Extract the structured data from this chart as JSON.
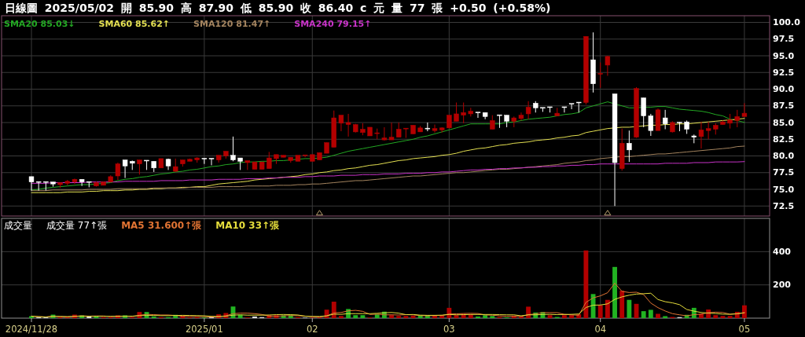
{
  "chart_data": [
    {
      "type": "candlestick",
      "title": "日線圖 2025/05/02 開 85.90 高 87.90 低 85.90 收 86.40 c 元 量 77 張 +0.50 (+0.58%)",
      "categories": [
        "2024/11/28",
        null,
        null,
        null,
        null,
        null,
        null,
        null,
        null,
        null,
        null,
        null,
        null,
        null,
        null,
        null,
        null,
        null,
        null,
        null,
        null,
        null,
        null,
        null,
        "2025/01",
        null,
        null,
        null,
        null,
        null,
        null,
        null,
        null,
        null,
        null,
        null,
        null,
        null,
        null,
        "02",
        null,
        null,
        null,
        null,
        null,
        null,
        null,
        null,
        null,
        null,
        null,
        null,
        null,
        null,
        null,
        null,
        null,
        null,
        "03",
        null,
        null,
        null,
        null,
        null,
        null,
        null,
        null,
        null,
        null,
        null,
        null,
        null,
        null,
        null,
        null,
        null,
        null,
        null,
        null,
        "04",
        null,
        null,
        null,
        null,
        null,
        null,
        null,
        null,
        null,
        null,
        null,
        null,
        null,
        null,
        null,
        null,
        null,
        null,
        null,
        "05"
      ],
      "ohlc": [
        [
          76.9,
          76.9,
          74.8,
          76.1
        ],
        [
          76.1,
          76.1,
          74.8,
          76.1
        ],
        [
          76.1,
          76.1,
          74.8,
          76.1
        ],
        [
          76.1,
          76.1,
          75.4,
          75.8
        ],
        [
          75.7,
          76.0,
          75.2,
          76.0
        ],
        [
          75.9,
          76.4,
          75.6,
          76.2
        ],
        [
          76.1,
          76.6,
          75.8,
          76.5
        ],
        [
          76.5,
          76.5,
          75.5,
          76.1
        ],
        [
          76.1,
          76.1,
          75.3,
          76.1
        ],
        [
          75.5,
          76.2,
          75.4,
          76.0
        ],
        [
          75.6,
          76.1,
          75.6,
          76.1
        ],
        [
          76.1,
          77.1,
          76.0,
          76.9
        ],
        [
          77.0,
          79.0,
          76.4,
          78.8
        ],
        [
          79.4,
          79.4,
          76.7,
          78.5
        ],
        [
          79.2,
          79.3,
          77.9,
          78.9
        ],
        [
          78.8,
          79.4,
          77.2,
          79.4
        ],
        [
          79.3,
          79.3,
          77.9,
          79.3
        ],
        [
          79.2,
          79.2,
          77.6,
          78.2
        ],
        [
          78.2,
          79.6,
          78.2,
          79.6
        ],
        [
          79.5,
          79.6,
          77.9,
          78.5
        ],
        [
          77.7,
          79.6,
          77.6,
          78.4
        ],
        [
          78.8,
          79.4,
          78.4,
          79.4
        ],
        [
          79.2,
          79.6,
          79.2,
          79.5
        ],
        [
          79.4,
          79.8,
          79.0,
          79.7
        ],
        [
          79.6,
          79.6,
          78.8,
          79.6
        ],
        [
          79.6,
          79.6,
          78.6,
          79.6
        ],
        [
          79.4,
          80.1,
          79.0,
          80.1
        ],
        [
          80.0,
          80.7,
          79.6,
          80.7
        ],
        [
          80.1,
          82.9,
          79.2,
          79.4
        ],
        [
          79.7,
          79.7,
          77.9,
          79.2
        ],
        [
          79.0,
          79.3,
          77.9,
          79.3
        ],
        [
          78.0,
          79.1,
          78.0,
          79.1
        ],
        [
          78.0,
          79.1,
          78.0,
          79.1
        ],
        [
          78.1,
          80.6,
          78.1,
          79.7
        ],
        [
          79.6,
          80.2,
          78.8,
          80.2
        ],
        [
          79.8,
          80.1,
          79.8,
          80.1
        ],
        [
          79.3,
          79.8,
          79.0,
          79.8
        ],
        [
          79.2,
          80.1,
          79.2,
          80.1
        ],
        [
          80.0,
          80.1,
          79.8,
          80.1
        ],
        [
          79.2,
          80.2,
          79.2,
          80.2
        ],
        [
          79.4,
          80.5,
          79.4,
          80.5
        ],
        [
          80.4,
          82.0,
          80.4,
          82.0
        ],
        [
          81.3,
          86.8,
          81.3,
          85.7
        ],
        [
          84.9,
          86.1,
          83.7,
          86.1
        ],
        [
          84.7,
          86.3,
          82.9,
          85.0
        ],
        [
          83.6,
          84.8,
          83.5,
          84.7
        ],
        [
          83.5,
          84.9,
          83.1,
          84.0
        ],
        [
          83.0,
          84.3,
          83.0,
          84.3
        ],
        [
          83.3,
          84.1,
          82.5,
          83.4
        ],
        [
          82.4,
          84.3,
          82.3,
          82.7
        ],
        [
          82.4,
          85.0,
          82.4,
          82.8
        ],
        [
          82.8,
          85.0,
          82.8,
          84.0
        ],
        [
          84.0,
          84.1,
          82.7,
          84.1
        ],
        [
          83.3,
          84.6,
          83.3,
          84.6
        ],
        [
          83.6,
          84.5,
          83.6,
          84.2
        ],
        [
          84.1,
          85.0,
          83.7,
          84.0
        ],
        [
          83.8,
          84.7,
          83.5,
          84.1
        ],
        [
          83.9,
          84.3,
          83.5,
          84.2
        ],
        [
          84.2,
          86.1,
          84.1,
          86.1
        ],
        [
          85.2,
          88.0,
          85.2,
          86.3
        ],
        [
          86.1,
          88.0,
          84.9,
          86.5
        ],
        [
          86.3,
          87.2,
          85.9,
          86.7
        ],
        [
          86.5,
          86.5,
          85.7,
          86.4
        ],
        [
          86.5,
          86.5,
          85.5,
          85.9
        ],
        [
          84.0,
          86.1,
          84.0,
          85.3
        ],
        [
          86.1,
          86.1,
          84.2,
          86.1
        ],
        [
          86.1,
          86.1,
          84.3,
          85.2
        ],
        [
          85.2,
          85.9,
          84.3,
          85.7
        ],
        [
          85.6,
          86.5,
          85.3,
          86.1
        ],
        [
          86.3,
          88.2,
          85.5,
          87.3
        ],
        [
          87.9,
          88.2,
          86.5,
          87.2
        ],
        [
          87.2,
          87.2,
          86.6,
          87.1
        ],
        [
          87.3,
          87.3,
          86.5,
          87.2
        ],
        [
          86.0,
          87.2,
          86.0,
          86.4
        ],
        [
          87.3,
          87.3,
          86.5,
          87.3
        ],
        [
          87.8,
          87.8,
          87.0,
          87.8
        ],
        [
          88.0,
          88.0,
          86.5,
          88.0
        ],
        [
          88.0,
          97.9,
          87.7,
          97.9
        ],
        [
          94.4,
          98.5,
          89.5,
          90.8
        ],
        [
          92.2,
          94.0,
          90.2,
          92.3
        ],
        [
          93.6,
          95.0,
          92.0,
          94.9
        ],
        [
          89.3,
          89.3,
          72.5,
          79.0
        ],
        [
          78.1,
          84.1,
          77.8,
          81.9
        ],
        [
          81.9,
          83.8,
          79.1,
          80.9
        ],
        [
          82.8,
          90.3,
          82.7,
          90.1
        ],
        [
          88.7,
          88.7,
          84.3,
          86.0
        ],
        [
          86.0,
          86.3,
          83.0,
          83.8
        ],
        [
          83.8,
          87.1,
          83.8,
          86.9
        ],
        [
          85.7,
          86.9,
          84.0,
          84.8
        ],
        [
          83.6,
          85.2,
          83.5,
          85.0
        ],
        [
          85.0,
          85.1,
          83.7,
          85.0
        ],
        [
          85.1,
          85.3,
          83.3,
          84.0
        ],
        [
          83.0,
          83.2,
          81.9,
          82.8
        ],
        [
          82.9,
          85.1,
          81.1,
          83.9
        ],
        [
          83.8,
          85.1,
          82.5,
          84.1
        ],
        [
          84.0,
          84.9,
          83.2,
          84.6
        ],
        [
          84.7,
          85.3,
          84.7,
          85.1
        ],
        [
          84.9,
          86.3,
          84.1,
          85.4
        ],
        [
          85.3,
          86.9,
          84.3,
          85.9
        ],
        [
          85.9,
          87.9,
          85.9,
          86.4
        ]
      ],
      "colors": [
        "#ffffff",
        "#ffffff",
        "#ffffff",
        "#ffffff",
        "#b30000",
        "#b30000",
        "#b30000",
        "#ffffff",
        "#ffffff",
        "#b30000",
        "#b30000",
        "#b30000",
        "#b30000",
        "#ffffff",
        "#ffffff",
        "#b30000",
        "#ffffff",
        "#ffffff",
        "#b30000",
        "#ffffff",
        "#b30000",
        "#b30000",
        "#b30000",
        "#b30000",
        "#ffffff",
        "#ffffff",
        "#b30000",
        "#b30000",
        "#ffffff",
        "#ffffff",
        "#b30000",
        "#b30000",
        "#b30000",
        "#b30000",
        "#b30000",
        "#b30000",
        "#b30000",
        "#b30000",
        "#b30000",
        "#b30000",
        "#b30000",
        "#b30000",
        "#b30000",
        "#b30000",
        "#b30000",
        "#b30000",
        "#b30000",
        "#b30000",
        "#b30000",
        "#b30000",
        "#b30000",
        "#b30000",
        "#b30000",
        "#b30000",
        "#b30000",
        "#ffffff",
        "#b30000",
        "#b30000",
        "#b30000",
        "#b30000",
        "#b30000",
        "#b30000",
        "#ffffff",
        "#ffffff",
        "#b30000",
        "#ffffff",
        "#ffffff",
        "#b30000",
        "#b30000",
        "#b30000",
        "#ffffff",
        "#ffffff",
        "#ffffff",
        "#b30000",
        "#ffffff",
        "#ffffff",
        "#ffffff",
        "#b30000",
        "#ffffff",
        "#b30000",
        "#b30000",
        "#ffffff",
        "#b30000",
        "#ffffff",
        "#b30000",
        "#ffffff",
        "#ffffff",
        "#b30000",
        "#ffffff",
        "#b30000",
        "#ffffff",
        "#ffffff",
        "#ffffff",
        "#b30000",
        "#b30000",
        "#b30000",
        "#b30000",
        "#b30000",
        "#b30000",
        "#b30000"
      ],
      "series": [
        {
          "type": "line",
          "name": "SMA20 85.03↓",
          "color": "#23a823",
          "values": [
            74.9,
            75.0,
            75.2,
            75.3,
            75.4,
            75.5,
            75.6,
            75.7,
            75.7,
            75.8,
            75.9,
            76.0,
            76.3,
            76.5,
            76.6,
            76.8,
            76.9,
            77.1,
            77.3,
            77.4,
            77.6,
            77.7,
            77.9,
            78.0,
            78.2,
            78.4,
            78.5,
            78.7,
            78.8,
            79.0,
            79.1,
            79.1,
            79.2,
            79.2,
            79.3,
            79.3,
            79.4,
            79.5,
            79.6,
            79.6,
            79.7,
            79.8,
            80.1,
            80.4,
            80.7,
            80.9,
            81.1,
            81.3,
            81.5,
            81.7,
            81.9,
            82.1,
            82.3,
            82.5,
            82.8,
            83.0,
            83.3,
            83.6,
            83.9,
            84.2,
            84.5,
            84.8,
            84.8,
            84.8,
            84.8,
            84.8,
            85.0,
            85.1,
            85.3,
            85.5,
            85.6,
            85.7,
            85.8,
            86.0,
            86.2,
            86.3,
            86.5,
            87.2,
            87.5,
            87.8,
            88.1,
            87.8,
            87.5,
            87.2,
            87.2,
            87.3,
            87.3,
            87.4,
            87.4,
            87.2,
            87.0,
            86.9,
            86.8,
            86.7,
            86.5,
            86.2,
            86.0,
            85.5,
            85.3,
            85.03
          ]
        },
        {
          "type": "line",
          "name": "SMA60 85.62↑",
          "color": "#e4e052",
          "values": [
            74.5,
            74.5,
            74.5,
            74.5,
            74.5,
            74.6,
            74.6,
            74.6,
            74.7,
            74.7,
            74.8,
            74.8,
            74.8,
            74.9,
            74.9,
            75.0,
            75.0,
            75.1,
            75.1,
            75.2,
            75.2,
            75.3,
            75.3,
            75.4,
            75.4,
            75.6,
            75.8,
            75.9,
            76.0,
            76.1,
            76.2,
            76.4,
            76.5,
            76.6,
            76.7,
            76.8,
            76.9,
            77.0,
            77.2,
            77.3,
            77.5,
            77.6,
            77.8,
            77.9,
            78.1,
            78.2,
            78.4,
            78.6,
            78.7,
            78.9,
            79.1,
            79.3,
            79.4,
            79.6,
            79.7,
            79.8,
            79.9,
            80.1,
            80.2,
            80.4,
            80.7,
            80.9,
            81.1,
            81.2,
            81.4,
            81.6,
            81.7,
            81.9,
            82.0,
            82.1,
            82.3,
            82.4,
            82.5,
            82.7,
            82.8,
            83.0,
            83.1,
            83.5,
            83.7,
            83.9,
            84.1,
            84.2,
            84.3,
            84.3,
            84.4,
            84.5,
            84.6,
            84.6,
            84.7,
            84.7,
            84.8,
            84.8,
            84.9,
            85.0,
            85.1,
            85.2,
            85.3,
            85.4,
            85.5,
            85.62
          ]
        },
        {
          "type": "line",
          "name": "SMA120 81.47↑",
          "color": "#a4845f",
          "values": [
            74.8,
            74.8,
            74.8,
            74.9,
            74.9,
            74.9,
            74.9,
            74.9,
            75.0,
            75.0,
            75.0,
            75.0,
            75.1,
            75.1,
            75.1,
            75.1,
            75.1,
            75.2,
            75.2,
            75.2,
            75.2,
            75.2,
            75.3,
            75.3,
            75.3,
            75.3,
            75.4,
            75.4,
            75.4,
            75.4,
            75.5,
            75.5,
            75.5,
            75.5,
            75.6,
            75.6,
            75.6,
            75.7,
            75.7,
            75.8,
            75.8,
            75.9,
            76.0,
            76.1,
            76.2,
            76.3,
            76.3,
            76.4,
            76.5,
            76.6,
            76.7,
            76.8,
            76.9,
            77.0,
            77.0,
            77.1,
            77.2,
            77.3,
            77.4,
            77.5,
            77.5,
            77.6,
            77.7,
            77.8,
            77.9,
            78.0,
            78.0,
            78.1,
            78.2,
            78.3,
            78.4,
            78.5,
            78.6,
            78.7,
            78.9,
            79.0,
            79.1,
            79.3,
            79.4,
            79.6,
            79.7,
            79.8,
            79.9,
            79.9,
            80.0,
            80.1,
            80.2,
            80.3,
            80.3,
            80.4,
            80.5,
            80.6,
            80.7,
            80.8,
            80.9,
            81.0,
            81.1,
            81.2,
            81.4,
            81.47
          ]
        },
        {
          "type": "line",
          "name": "SMA240 79.15↑",
          "color": "#c833c8",
          "values": [
            75.9,
            75.9,
            75.9,
            76.0,
            76.0,
            76.0,
            76.0,
            76.0,
            76.1,
            76.1,
            76.1,
            76.1,
            76.1,
            76.2,
            76.2,
            76.2,
            76.2,
            76.2,
            76.3,
            76.3,
            76.3,
            76.3,
            76.4,
            76.4,
            76.4,
            76.4,
            76.5,
            76.5,
            76.5,
            76.5,
            76.6,
            76.6,
            76.6,
            76.7,
            76.7,
            76.8,
            76.8,
            76.8,
            76.9,
            76.9,
            77.0,
            77.0,
            77.0,
            77.1,
            77.1,
            77.1,
            77.2,
            77.2,
            77.2,
            77.3,
            77.3,
            77.3,
            77.4,
            77.4,
            77.4,
            77.5,
            77.5,
            77.6,
            77.6,
            77.7,
            77.8,
            77.9,
            77.9,
            78.0,
            78.0,
            78.1,
            78.1,
            78.2,
            78.2,
            78.3,
            78.3,
            78.4,
            78.4,
            78.5,
            78.5,
            78.6,
            78.6,
            78.7,
            78.7,
            78.8,
            78.8,
            78.8,
            78.8,
            78.8,
            78.8,
            78.8,
            78.8,
            78.8,
            78.9,
            78.9,
            78.9,
            78.9,
            79.0,
            79.0,
            79.0,
            79.1,
            79.1,
            79.1,
            79.1,
            79.15
          ]
        },
        {
          "type": "scatter",
          "marker": "triangle",
          "color": "#b8a070",
          "values": [
            null,
            null,
            null,
            null,
            null,
            null,
            null,
            null,
            null,
            null,
            null,
            null,
            null,
            null,
            null,
            null,
            null,
            null,
            null,
            null,
            null,
            null,
            null,
            null,
            null,
            null,
            null,
            null,
            null,
            null,
            null,
            null,
            null,
            null,
            null,
            null,
            null,
            null,
            null,
            null,
            71.5,
            null,
            null,
            null,
            null,
            null,
            null,
            null,
            null,
            null,
            null,
            null,
            null,
            null,
            null,
            null,
            null,
            null,
            null,
            null,
            null,
            null,
            null,
            null,
            null,
            null,
            null,
            null,
            null,
            null,
            null,
            null,
            null,
            null,
            null,
            null,
            null,
            null,
            null,
            null,
            71.5,
            null,
            null,
            null,
            null,
            null,
            null,
            null,
            null,
            null,
            null,
            null,
            null,
            null,
            null,
            null,
            null,
            null,
            null,
            null
          ]
        }
      ],
      "ylim": [
        71,
        101
      ],
      "yticks": [
        72.5,
        {
          "value": 75,
          "label": "75.0"
        },
        77.5,
        {
          "value": 80,
          "label": "80.0"
        },
        82.5,
        {
          "value": 85,
          "label": "85.0"
        },
        87.5,
        {
          "value": 90,
          "label": "90.0"
        },
        92.5,
        {
          "value": 95,
          "label": "95.0"
        },
        97.5,
        {
          "value": 100,
          "label": "100.0"
        }
      ],
      "grid": true,
      "legend": "top left",
      "tick_labels": "y"
    },
    {
      "type": "bar",
      "title": "成交量",
      "annotations": [
        "成交量 77↑張"
      ],
      "categories": [
        "2024/11/28",
        null,
        null,
        null,
        null,
        null,
        null,
        null,
        null,
        null,
        null,
        null,
        null,
        null,
        null,
        null,
        null,
        null,
        null,
        null,
        null,
        null,
        null,
        null,
        "2025/01",
        null,
        null,
        null,
        null,
        null,
        null,
        null,
        null,
        null,
        null,
        null,
        null,
        null,
        null,
        "02",
        null,
        null,
        null,
        null,
        null,
        null,
        null,
        null,
        null,
        null,
        null,
        null,
        null,
        null,
        null,
        null,
        null,
        null,
        "03",
        null,
        null,
        null,
        null,
        null,
        null,
        null,
        null,
        null,
        null,
        null,
        null,
        null,
        null,
        null,
        null,
        null,
        null,
        null,
        null,
        "04",
        null,
        null,
        null,
        null,
        null,
        null,
        null,
        null,
        null,
        null,
        null,
        null,
        null,
        null,
        null,
        null,
        null,
        null,
        null,
        "05"
      ],
      "series": [
        {
          "values": [
            12,
            5,
            4,
            21,
            6,
            5,
            21,
            17,
            10,
            10,
            6,
            6,
            17,
            17,
            6,
            37,
            37,
            10,
            6,
            6,
            20,
            13,
            4,
            6,
            4,
            6,
            23,
            31,
            70,
            20,
            4,
            10,
            6,
            18,
            18,
            17,
            17,
            6,
            3,
            3,
            4,
            51,
            99,
            13,
            55,
            18,
            18,
            4,
            23,
            39,
            18,
            13,
            13,
            15,
            15,
            15,
            18,
            15,
            62,
            18,
            26,
            23,
            10,
            18,
            13,
            7,
            5,
            15,
            9,
            69,
            34,
            37,
            18,
            7,
            18,
            18,
            23,
            407,
            145,
            78,
            110,
            308,
            165,
            110,
            86,
            42,
            50,
            26,
            12,
            7,
            6,
            20,
            62,
            26,
            52,
            18,
            13,
            13,
            38,
            77
          ],
          "colors": [
            "#22b422",
            "#e0e0e0",
            "#e0e0e0",
            "#22b422",
            "#b30000",
            "#b30000",
            "#b30000",
            "#22b422",
            "#e0e0e0",
            "#22b422",
            "#b30000",
            "#b30000",
            "#b30000",
            "#22b422",
            "#b30000",
            "#b30000",
            "#22b422",
            "#22b422",
            "#b30000",
            "#22b422",
            "#22b422",
            "#b30000",
            "#b30000",
            "#b30000",
            "#22b422",
            "#e0e0e0",
            "#b30000",
            "#b30000",
            "#22b422",
            "#22b422",
            "#b30000",
            "#e0e0e0",
            "#e0e0e0",
            "#b30000",
            "#b30000",
            "#22b422",
            "#22b422",
            "#b30000",
            "#e0e0e0",
            "#b30000",
            "#b30000",
            "#b30000",
            "#b30000",
            "#b30000",
            "#22b422",
            "#22b422",
            "#22b422",
            "#b30000",
            "#22b422",
            "#22b422",
            "#b30000",
            "#b30000",
            "#b30000",
            "#b30000",
            "#22b422",
            "#22b422",
            "#b30000",
            "#b30000",
            "#b30000",
            "#b30000",
            "#b30000",
            "#b30000",
            "#22b422",
            "#22b422",
            "#22b422",
            "#b30000",
            "#22b422",
            "#b30000",
            "#b30000",
            "#b30000",
            "#22b422",
            "#22b422",
            "#b30000",
            "#22b422",
            "#b30000",
            "#b30000",
            "#b30000",
            "#b30000",
            "#22b422",
            "#b30000",
            "#b30000",
            "#22b422",
            "#b30000",
            "#22b422",
            "#b30000",
            "#22b422",
            "#22b422",
            "#b30000",
            "#22b422",
            "#b30000",
            "#e0e0e0",
            "#22b422",
            "#22b422",
            "#b30000",
            "#b30000",
            "#b30000",
            "#b30000",
            "#b30000",
            "#b30000",
            "#b30000"
          ]
        },
        {
          "type": "line",
          "name": "MA5 31.600↑張",
          "color": "#e07333",
          "values": [
            12,
            9,
            7,
            11,
            10,
            8,
            11,
            14,
            12,
            13,
            13,
            10,
            10,
            11,
            10,
            17,
            23,
            21,
            19,
            19,
            16,
            11,
            10,
            10,
            9,
            7,
            9,
            14,
            27,
            30,
            30,
            27,
            22,
            12,
            11,
            14,
            15,
            15,
            12,
            9,
            7,
            13,
            32,
            34,
            44,
            47,
            41,
            22,
            24,
            20,
            20,
            19,
            21,
            20,
            15,
            14,
            15,
            16,
            25,
            26,
            28,
            29,
            28,
            19,
            18,
            14,
            11,
            12,
            10,
            21,
            26,
            33,
            33,
            33,
            23,
            20,
            17,
            95,
            122,
            134,
            153,
            210,
            161,
            154,
            156,
            142,
            91,
            63,
            43,
            27,
            20,
            14,
            21,
            24,
            33,
            36,
            34,
            24,
            27,
            31.6
          ]
        },
        {
          "type": "line",
          "name": "MA10 33↑張",
          "color": "#e6de3c",
          "values": [
            12,
            9,
            7,
            11,
            10,
            9,
            11,
            11,
            11,
            11,
            11,
            11,
            12,
            12,
            12,
            15,
            16,
            16,
            15,
            15,
            16,
            17,
            16,
            15,
            14,
            11,
            10,
            12,
            18,
            20,
            18,
            18,
            18,
            19,
            21,
            22,
            21,
            19,
            12,
            10,
            10,
            14,
            24,
            23,
            27,
            27,
            27,
            27,
            29,
            32,
            34,
            30,
            21,
            22,
            18,
            17,
            17,
            18,
            22,
            20,
            21,
            22,
            22,
            22,
            22,
            21,
            20,
            20,
            14,
            20,
            20,
            22,
            23,
            21,
            22,
            23,
            25,
            64,
            78,
            79,
            86,
            113,
            128,
            138,
            145,
            147,
            150,
            112,
            99,
            92,
            81,
            52,
            42,
            34,
            30,
            28,
            24,
            23,
            26,
            33
          ]
        }
      ],
      "ylim": [
        0,
        600
      ],
      "yticks": [
        200,
        400
      ],
      "grid": true,
      "legend": "top left"
    }
  ]
}
